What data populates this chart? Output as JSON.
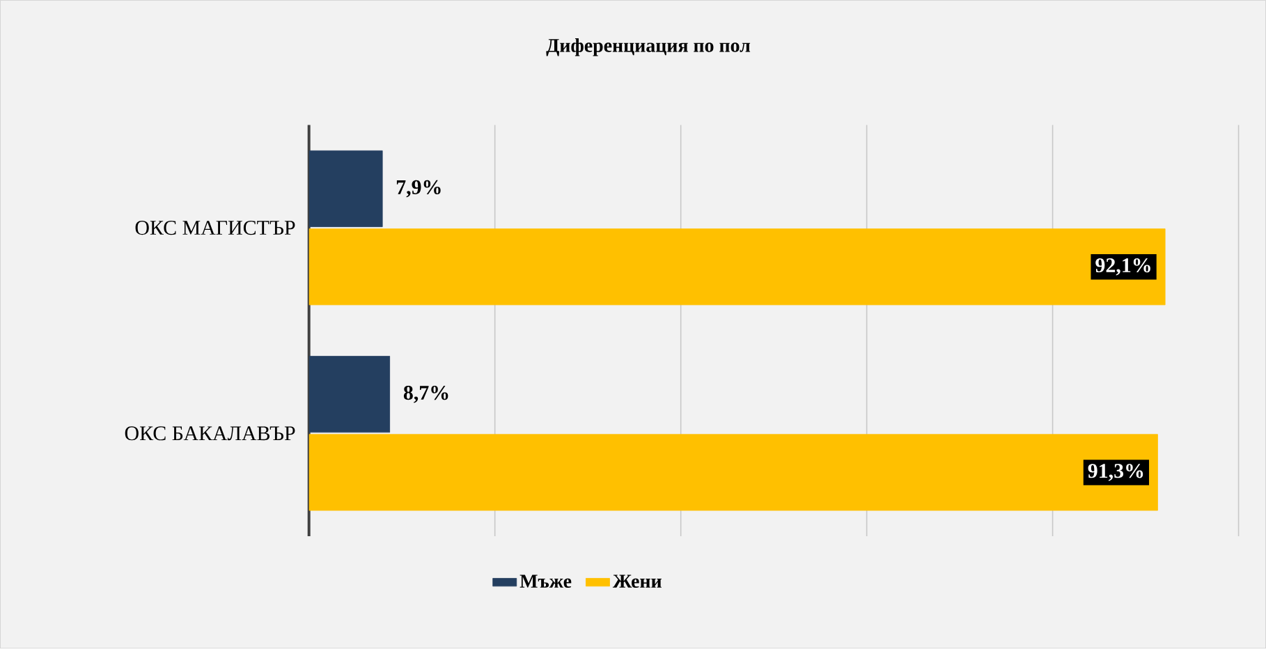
{
  "chart_data": {
    "type": "bar",
    "orientation": "horizontal",
    "title": "Диференциация по пол",
    "categories": [
      "ОКС МАГИСТЪР",
      "ОКС БАКАЛАВЪР"
    ],
    "series": [
      {
        "name": "Мъже",
        "color": "#243f60",
        "values": [
          7.9,
          8.7
        ],
        "value_labels": [
          "7,9%",
          "8,7%"
        ]
      },
      {
        "name": "Жени",
        "color": "#ffc000",
        "values": [
          92.1,
          91.3
        ],
        "value_labels": [
          "92,1%",
          "91,3%"
        ]
      }
    ],
    "xlim": [
      0,
      100
    ],
    "xticks": [
      {
        "value": 0,
        "label": null
      },
      {
        "value": 20,
        "label": null
      },
      {
        "value": 40,
        "label": null
      },
      {
        "value": 60,
        "label": null
      },
      {
        "value": 80,
        "label": null
      },
      {
        "value": 100,
        "label": null
      }
    ],
    "grid": "x",
    "legend": "bottom",
    "tick_labels": "y"
  }
}
